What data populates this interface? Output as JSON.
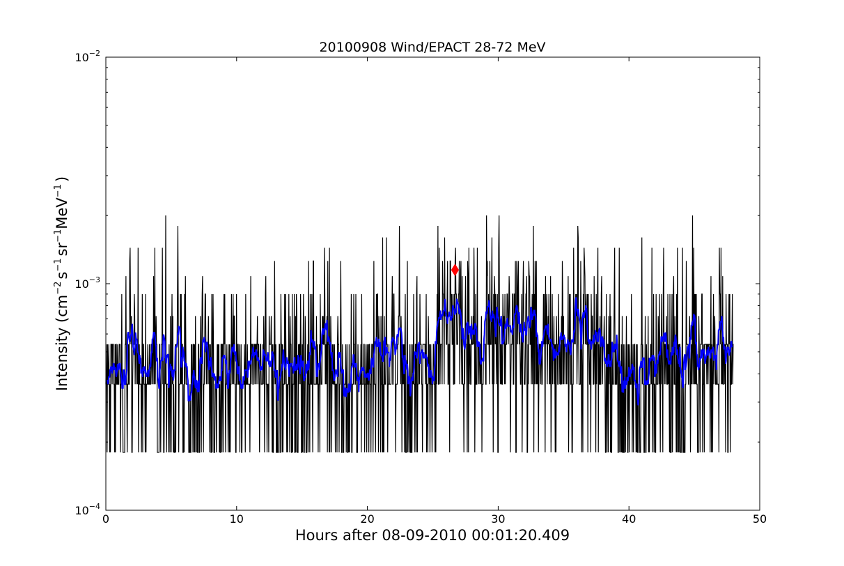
{
  "chart_data": {
    "type": "line",
    "title": "20100908 Wind/EPACT 28-72 MeV",
    "xlabel": "Hours after 08-09-2010 00:01:20.409",
    "ylabel": {
      "prefix": "Intensity (cm",
      "exp1": "−2",
      "s": "s",
      "exp2": "−1",
      "sr": "sr",
      "exp3": "−1",
      "mev": "MeV",
      "exp4": "−1",
      "suffix": ")"
    },
    "xlim": [
      0,
      50
    ],
    "ylim": [
      0.0001,
      0.01
    ],
    "yscale": "log",
    "grid": false,
    "x_ticks": [
      "0",
      "10",
      "20",
      "30",
      "40",
      "50"
    ],
    "x_tick_values": [
      0,
      10,
      20,
      30,
      40,
      50
    ],
    "y_ticks": [
      {
        "value": 0.0001,
        "base": "10",
        "exp": "−4"
      },
      {
        "value": 0.001,
        "base": "10",
        "exp": "−3"
      },
      {
        "value": 0.01,
        "base": "10",
        "exp": "−2"
      }
    ],
    "series": [
      {
        "color": "#000000",
        "x_start": 0.0,
        "x_end": 48.0,
        "levels": [
          0.00018,
          0.00036,
          0.00054,
          0.00072,
          0.0009,
          0.00108,
          0.00126,
          0.00144,
          0.0016,
          0.0018,
          0.002,
          0.0022
        ],
        "baseline_values": [
          0.00036,
          0.00054
        ]
      },
      {
        "color": "#0000ff",
        "x_start": 0.1,
        "x_end": 47.9,
        "values_mean": 0.00048
      }
    ],
    "marker": {
      "x": 26.7,
      "y": 0.00115,
      "color": "#ff0000",
      "shape": "diamond"
    }
  }
}
